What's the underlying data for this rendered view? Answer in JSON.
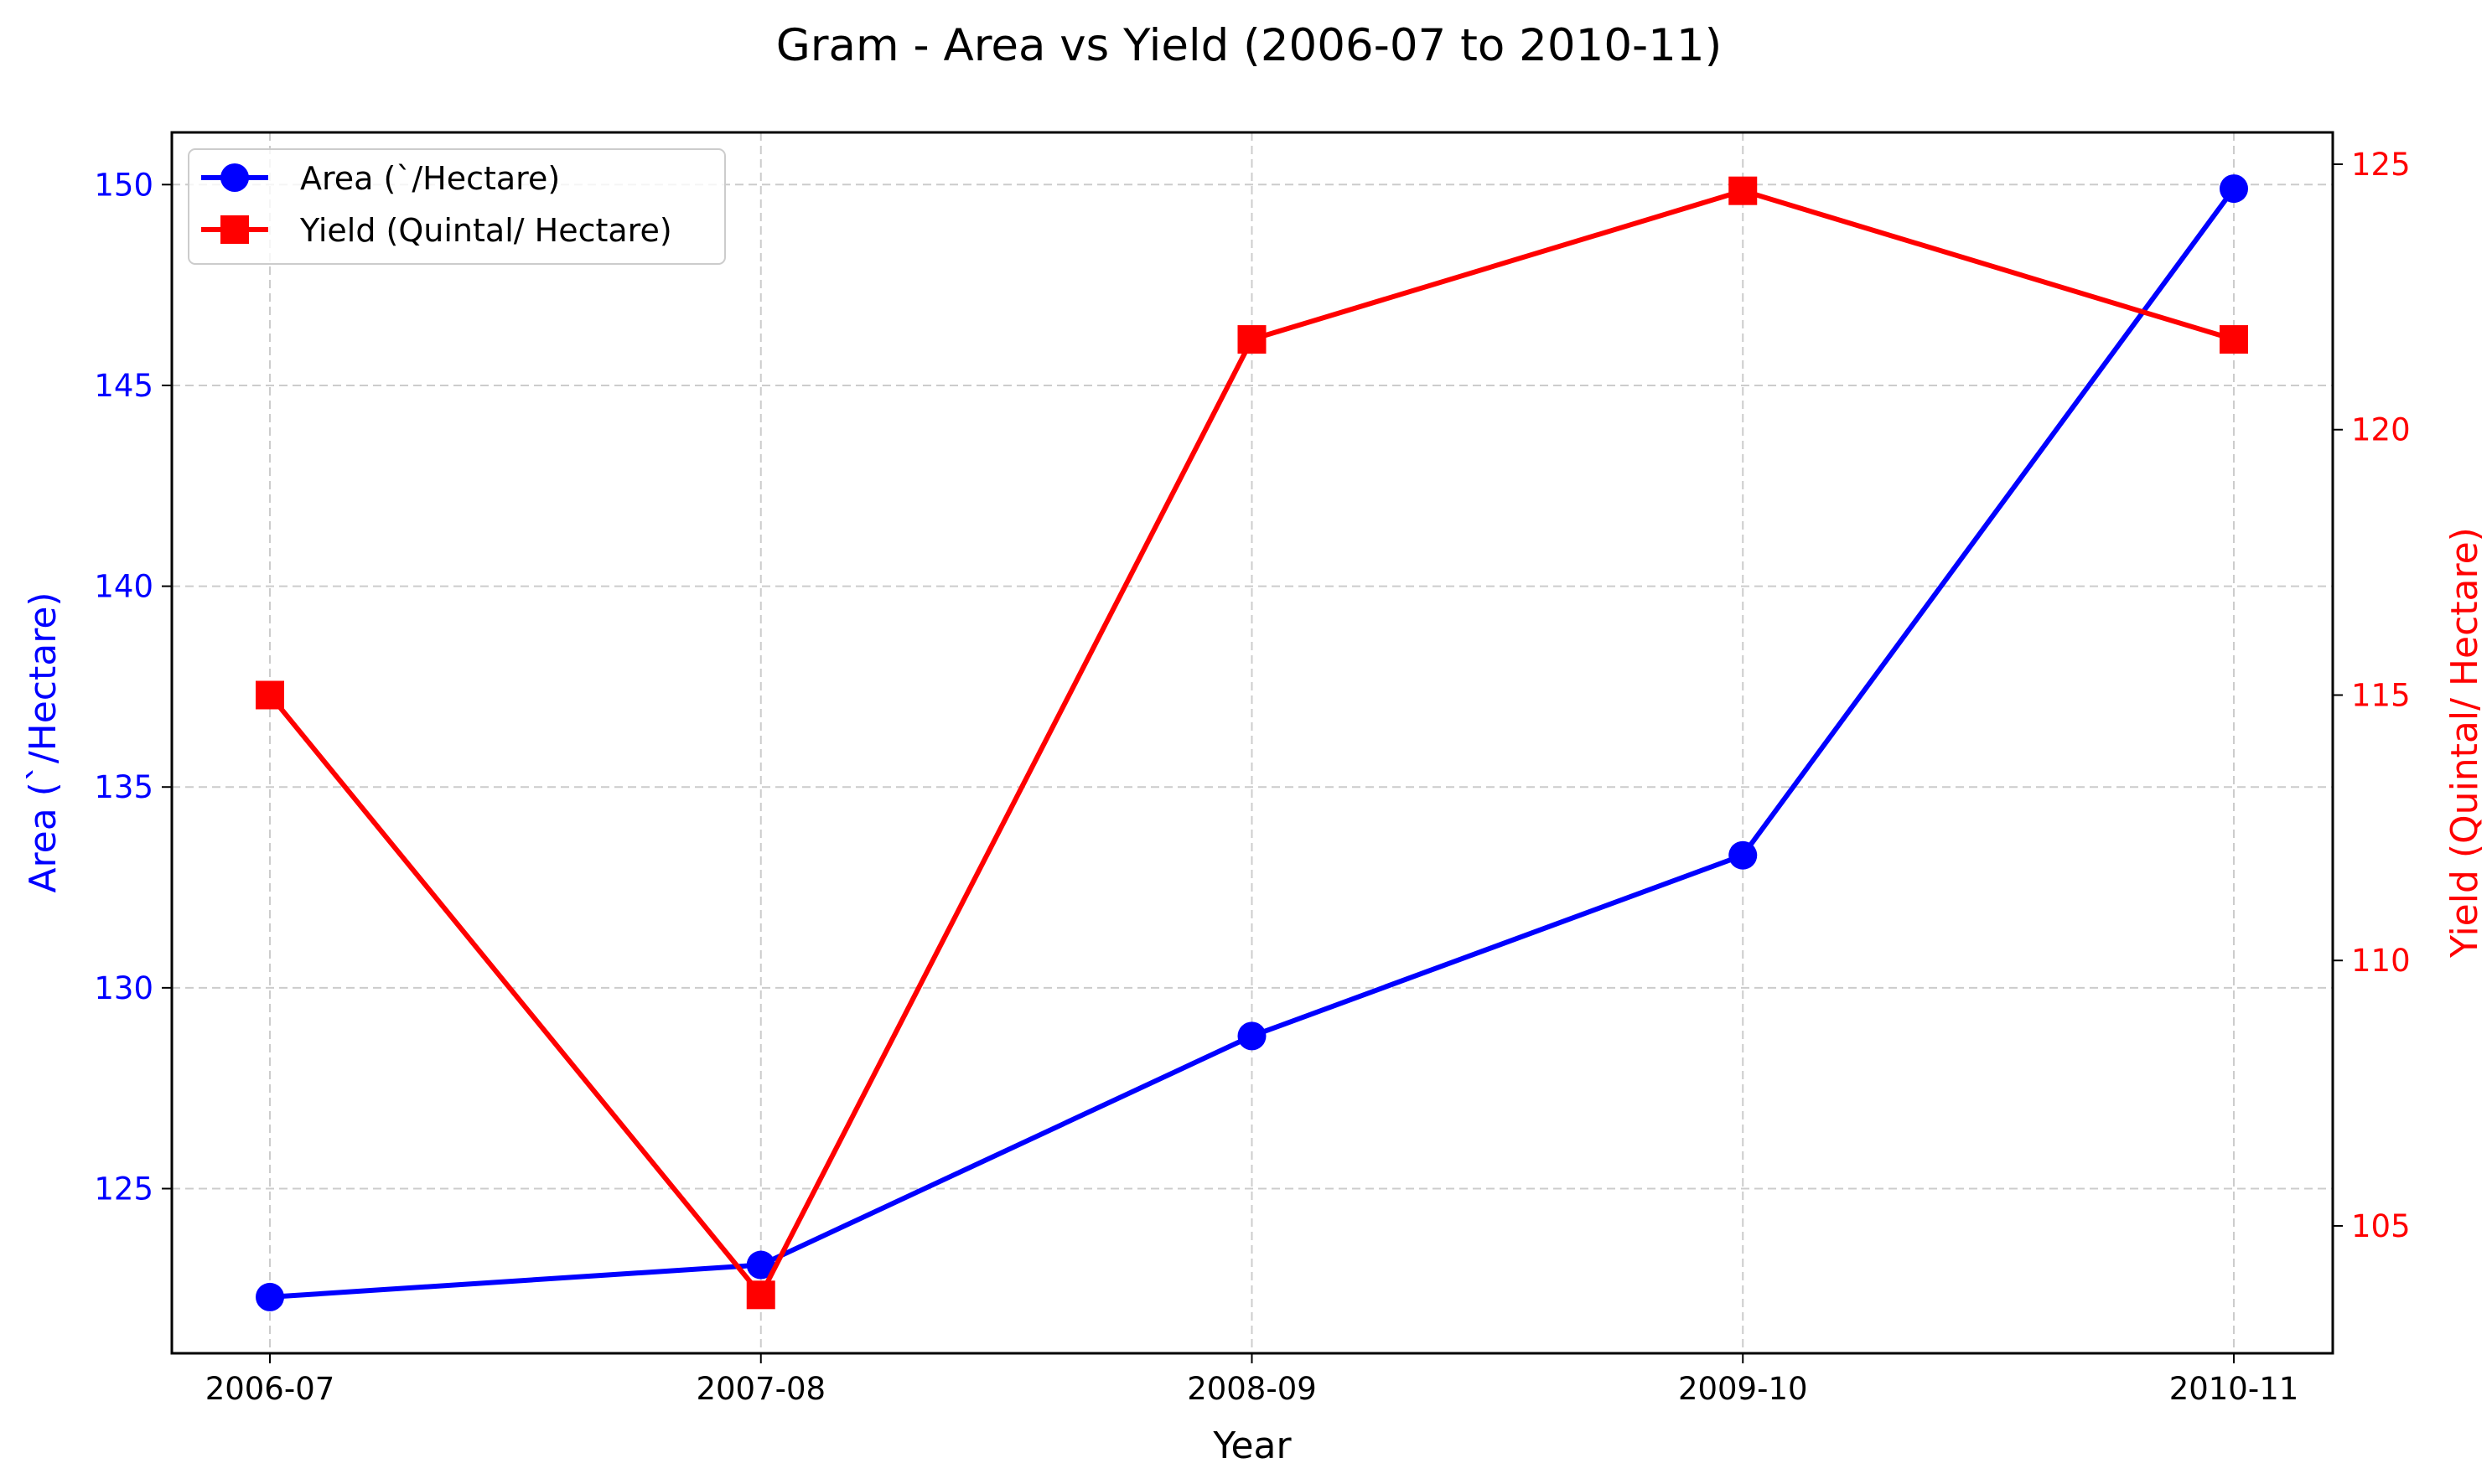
{
  "chart_data": {
    "type": "line",
    "title": "Gram - Area vs Yield (2006-07 to 2010-11)",
    "xlabel": "Year",
    "categories": [
      "2006-07",
      "2007-08",
      "2008-09",
      "2009-10",
      "2010-11"
    ],
    "series": [
      {
        "name": "Area (`/Hectare)",
        "axis": "left",
        "color": "#0000ff",
        "marker": "circle",
        "values": [
          122.3,
          123.1,
          128.8,
          133.3,
          149.9
        ]
      },
      {
        "name": "Yield (Quintal/ Hectare)",
        "axis": "right",
        "color": "#ff0000",
        "marker": "square",
        "values": [
          115.0,
          103.7,
          121.7,
          124.5,
          121.7
        ]
      }
    ],
    "y_left": {
      "label": "Area (`/Hectare)",
      "color": "#0000ff",
      "ticks": [
        125,
        130,
        135,
        140,
        145,
        150
      ],
      "range": [
        120.9,
        151.3
      ]
    },
    "y_right": {
      "label": "Yield (Quintal/ Hectare)",
      "color": "#ff0000",
      "ticks": [
        105,
        110,
        115,
        120,
        125
      ],
      "range": [
        102.6,
        125.6
      ]
    },
    "grid": true,
    "legend_position": "upper-left"
  }
}
